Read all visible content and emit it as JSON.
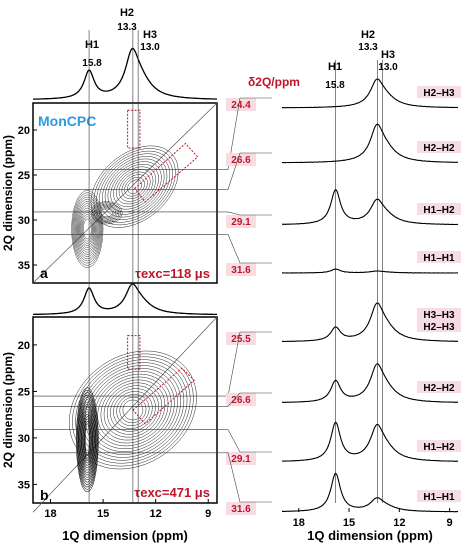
{
  "chart_data": [
    {
      "panel": "a",
      "type": "contour-2d-nmr",
      "sample_label": "MonCPC",
      "tau_label": "τexc=118 μs",
      "xlabel": "",
      "ylabel": "2Q dimension (ppm)",
      "xlim": [
        19,
        8.5
      ],
      "ylim": [
        17,
        37
      ],
      "ytick_labels": [
        "20",
        "25",
        "30",
        "35"
      ],
      "projection_peaks": [
        {
          "name": "H1",
          "ppm": "15.8",
          "intensity": 0.55
        },
        {
          "name": "H2",
          "ppm": "13.3",
          "intensity": 1.0
        },
        {
          "name": "H3",
          "ppm": "13.0",
          "intensity": 0.0
        }
      ],
      "slice_positions_2q": [
        "24.4",
        "26.6",
        "29.1",
        "31.6"
      ]
    },
    {
      "panel": "b",
      "type": "contour-2d-nmr",
      "tau_label": "τexc=471 μs",
      "xlabel": "1Q dimension (ppm)",
      "ylabel": "2Q dimension (ppm)",
      "xlim": [
        19,
        8.5
      ],
      "ylim": [
        17,
        37
      ],
      "xtick_labels": [
        "18",
        "15",
        "12",
        "9"
      ],
      "ytick_labels": [
        "20",
        "25",
        "30",
        "35"
      ],
      "projection_peaks": [
        {
          "name": "H1",
          "ppm": "15.8",
          "intensity": 0.9
        },
        {
          "name": "H2",
          "ppm": "13.3",
          "intensity": 1.0
        }
      ],
      "slice_positions_2q": [
        "25.5",
        "26.6",
        "29.1",
        "31.6"
      ]
    },
    {
      "panel": "slices-top",
      "type": "line",
      "header": "δ2Q/ppm",
      "peak_markers": [
        {
          "name": "H1",
          "ppm": "15.8"
        },
        {
          "name": "H2",
          "ppm": "13.3"
        },
        {
          "name": "H3",
          "ppm": "13.0"
        }
      ],
      "series": [
        {
          "shift": "24.4",
          "label": "H2–H3",
          "h1": 0.0,
          "h2": 0.75
        },
        {
          "shift": "26.6",
          "label": "H2–H2",
          "h1": 0.0,
          "h2": 1.0
        },
        {
          "shift": "29.1",
          "label": "H1–H2",
          "h1": 0.9,
          "h2": 0.65
        },
        {
          "shift": "31.6",
          "label": "H1–H1",
          "h1": 0.1,
          "h2": 0.05
        }
      ]
    },
    {
      "panel": "slices-bottom",
      "type": "line",
      "xlabel": "1Q dimension (ppm)",
      "xtick_labels": [
        "18",
        "15",
        "12",
        "9"
      ],
      "series": [
        {
          "shift": "25.5",
          "label": "H3–H3\nH2–H3",
          "h1": 0.35,
          "h2": 1.0
        },
        {
          "shift": "26.6",
          "label": "H2–H2",
          "h1": 0.55,
          "h2": 1.0
        },
        {
          "shift": "29.1",
          "label": "H1–H2",
          "h1": 1.0,
          "h2": 0.95
        },
        {
          "shift": "31.6",
          "label": "H1–H1",
          "h1": 1.0,
          "h2": 0.35
        }
      ]
    }
  ]
}
